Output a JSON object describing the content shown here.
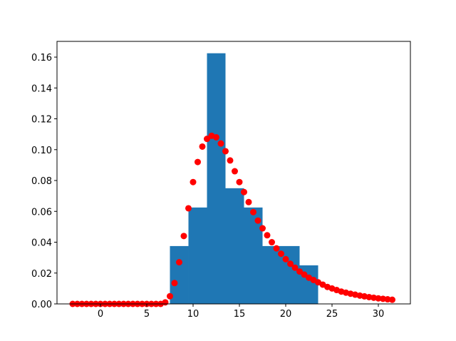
{
  "chart_data": {
    "type": "histogram",
    "bins": [
      7.5,
      9.5,
      11.5,
      13.5,
      15.5,
      17.5,
      19.5,
      21.5,
      23.5
    ],
    "values": [
      0.0375,
      0.0625,
      0.1625,
      0.075,
      0.0625,
      0.0375,
      0.0375,
      0.025
    ],
    "color": "#1f77b4",
    "points": {
      "color": "#ff0000",
      "x": [
        -3,
        -2.5,
        -2,
        -1.5,
        -1,
        -0.5,
        0,
        0.5,
        1,
        1.5,
        2,
        2.5,
        3,
        3.5,
        4,
        4.5,
        5,
        5.5,
        6,
        6.5,
        7,
        7.5,
        8,
        8.5,
        9,
        9.5,
        10,
        10.5,
        11,
        11.5,
        12,
        12.5,
        13,
        13.5,
        14,
        14.5,
        15,
        15.5,
        16,
        16.5,
        17,
        17.5,
        18,
        18.5,
        19,
        19.5,
        20,
        20.5,
        21,
        21.5,
        22,
        22.5,
        23,
        23.5,
        24,
        24.5,
        25,
        25.5,
        26,
        26.5,
        27,
        27.5,
        28,
        28.5,
        29,
        29.5,
        30,
        30.5,
        31,
        31.5
      ],
      "values": [
        0,
        0,
        0,
        0,
        0,
        0,
        0,
        0,
        0,
        0,
        0,
        0,
        0,
        0,
        0,
        0,
        0,
        0,
        0,
        0,
        0.001,
        0.005,
        0.0135,
        0.027,
        0.044,
        0.062,
        0.079,
        0.092,
        0.102,
        0.107,
        0.109,
        0.108,
        0.104,
        0.099,
        0.093,
        0.086,
        0.079,
        0.0725,
        0.066,
        0.0595,
        0.054,
        0.049,
        0.0445,
        0.04,
        0.036,
        0.0325,
        0.029,
        0.026,
        0.0235,
        0.021,
        0.019,
        0.017,
        0.0155,
        0.014,
        0.0125,
        0.011,
        0.01,
        0.009,
        0.008,
        0.0073,
        0.0066,
        0.006,
        0.0054,
        0.0049,
        0.0044,
        0.004,
        0.0036,
        0.0033,
        0.003,
        0.0027
      ]
    },
    "xlim": [
      -4.69,
      33.46
    ],
    "ylim": [
      0,
      0.1702
    ],
    "xticks": [
      0,
      5,
      10,
      15,
      20,
      25,
      30
    ],
    "yticks": [
      {
        "value": 0,
        "label": "0.00"
      },
      {
        "value": 0.02,
        "label": "0.02"
      },
      {
        "value": 0.04,
        "label": "0.04"
      },
      {
        "value": 0.06,
        "label": "0.06"
      },
      {
        "value": 0.08,
        "label": "0.08"
      },
      {
        "value": 0.1,
        "label": "0.10"
      },
      {
        "value": 0.12,
        "label": "0.12"
      },
      {
        "value": 0.14,
        "label": "0.14"
      },
      {
        "value": 0.16,
        "label": "0.16"
      }
    ]
  }
}
